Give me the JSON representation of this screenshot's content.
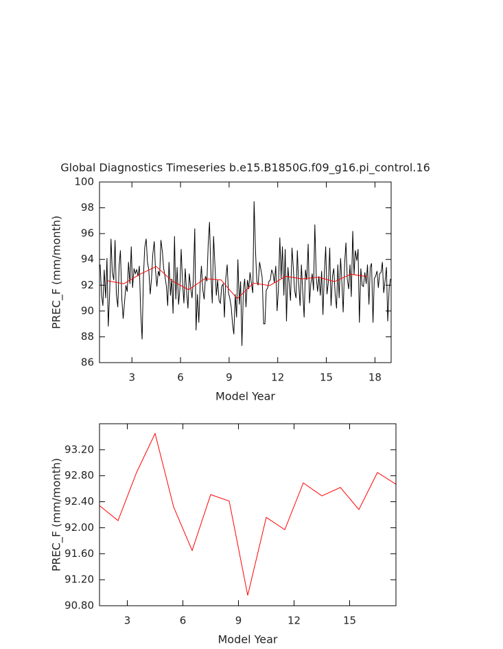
{
  "chart_data": [
    {
      "type": "line",
      "title": "Global Diagnostics Timeseries b.e15.B1850G.f09_g16.pi_control.16",
      "xlabel": "Model Year",
      "ylabel": "PREC_F (mm/month)",
      "xlim": [
        1,
        19
      ],
      "xticks": [
        3,
        6,
        9,
        12,
        15,
        18
      ],
      "ylim": [
        86,
        100
      ],
      "yticks": [
        86,
        88,
        90,
        92,
        94,
        96,
        98,
        100
      ],
      "series": [
        {
          "color": "#000000",
          "x": [
            1.04,
            1.13,
            1.21,
            1.29,
            1.38,
            1.46,
            1.54,
            1.63,
            1.71,
            1.79,
            1.88,
            1.96,
            2.04,
            2.13,
            2.21,
            2.29,
            2.38,
            2.46,
            2.54,
            2.63,
            2.71,
            2.79,
            2.88,
            2.96,
            3.04,
            3.13,
            3.21,
            3.29,
            3.38,
            3.46,
            3.54,
            3.63,
            3.71,
            3.79,
            3.88,
            3.96,
            4.04,
            4.13,
            4.21,
            4.29,
            4.38,
            4.46,
            4.54,
            4.63,
            4.71,
            4.79,
            4.88,
            4.96,
            5.04,
            5.13,
            5.21,
            5.29,
            5.38,
            5.46,
            5.54,
            5.63,
            5.71,
            5.79,
            5.88,
            5.96,
            6.04,
            6.13,
            6.21,
            6.29,
            6.38,
            6.46,
            6.54,
            6.63,
            6.71,
            6.79,
            6.88,
            6.96,
            7.04,
            7.13,
            7.21,
            7.29,
            7.38,
            7.46,
            7.54,
            7.63,
            7.71,
            7.79,
            7.88,
            7.96,
            8.04,
            8.13,
            8.21,
            8.29,
            8.38,
            8.46,
            8.54,
            8.63,
            8.71,
            8.79,
            8.88,
            8.96,
            9.04,
            9.13,
            9.21,
            9.29,
            9.38,
            9.46,
            9.54,
            9.63,
            9.71,
            9.79,
            9.88,
            9.96,
            10.04,
            10.13,
            10.21,
            10.29,
            10.38,
            10.46,
            10.54,
            10.63,
            10.71,
            10.79,
            10.88,
            10.96,
            11.04,
            11.13,
            11.21,
            11.29,
            11.38,
            11.46,
            11.54,
            11.63,
            11.71,
            11.79,
            11.88,
            11.96,
            12.04,
            12.13,
            12.21,
            12.29,
            12.38,
            12.46,
            12.54,
            12.63,
            12.71,
            12.79,
            12.88,
            12.96,
            13.04,
            13.13,
            13.21,
            13.29,
            13.38,
            13.46,
            13.54,
            13.63,
            13.71,
            13.79,
            13.88,
            13.96,
            14.04,
            14.13,
            14.21,
            14.29,
            14.38,
            14.46,
            14.54,
            14.63,
            14.71,
            14.79,
            14.88,
            14.96,
            15.04,
            15.13,
            15.21,
            15.29,
            15.38,
            15.46,
            15.54,
            15.63,
            15.71,
            15.79,
            15.88,
            15.96,
            16.04,
            16.13,
            16.21,
            16.29,
            16.38,
            16.46,
            16.54,
            16.63,
            16.71,
            16.79,
            16.88,
            16.96,
            17.04,
            17.13,
            17.21,
            17.29,
            17.38,
            17.46,
            17.54,
            17.63,
            17.71,
            17.79,
            17.88,
            17.96,
            18.04,
            18.13,
            18.21,
            18.29,
            18.38,
            18.46,
            18.54,
            18.63,
            18.71,
            18.79,
            18.88,
            18.96
          ],
          "values": [
            93.6,
            91.2,
            90.4,
            93.2,
            91.0,
            94.1,
            88.8,
            91.5,
            95.6,
            93.0,
            92.4,
            95.5,
            91.3,
            90.3,
            93.5,
            94.7,
            90.9,
            89.4,
            90.6,
            92.0,
            91.5,
            93.8,
            92.1,
            95.0,
            91.8,
            93.3,
            92.9,
            93.2,
            92.7,
            93.5,
            90.0,
            87.8,
            92.6,
            94.9,
            95.6,
            93.8,
            93.2,
            91.3,
            92.5,
            94.4,
            95.4,
            93.1,
            91.9,
            93.1,
            92.7,
            95.5,
            94.6,
            93.3,
            92.7,
            91.9,
            90.4,
            93.8,
            91.2,
            92.5,
            89.8,
            95.8,
            90.9,
            93.4,
            90.5,
            91.7,
            94.8,
            92.1,
            90.6,
            93.3,
            91.4,
            90.2,
            92.9,
            91.8,
            91.0,
            92.4,
            96.4,
            88.5,
            91.3,
            89.1,
            92.0,
            93.5,
            91.6,
            90.9,
            92.7,
            92.3,
            95.2,
            96.9,
            92.8,
            90.6,
            95.8,
            93.4,
            91.2,
            92.4,
            90.8,
            90.6,
            91.9,
            92.1,
            89.5,
            92.5,
            93.6,
            91.4,
            91.0,
            90.3,
            89.0,
            88.2,
            91.3,
            89.5,
            94.0,
            90.5,
            92.3,
            87.3,
            91.6,
            92.5,
            90.3,
            92.4,
            91.7,
            93.0,
            92.1,
            91.4,
            98.5,
            94.6,
            92.3,
            92.0,
            93.8,
            93.2,
            92.6,
            89.0,
            89.0,
            91.6,
            91.8,
            92.3,
            92.4,
            93.2,
            92.9,
            92.2,
            93.5,
            90.0,
            91.6,
            95.7,
            92.5,
            95.0,
            91.2,
            94.8,
            89.2,
            93.4,
            92.1,
            90.8,
            94.9,
            93.4,
            91.6,
            91.0,
            94.7,
            92.2,
            90.4,
            93.6,
            91.6,
            89.5,
            93.2,
            92.4,
            95.2,
            90.6,
            92.1,
            92.9,
            91.6,
            96.7,
            92.6,
            91.5,
            92.7,
            91.2,
            93.1,
            89.7,
            93.0,
            95.0,
            91.3,
            92.3,
            94.9,
            90.4,
            92.7,
            93.3,
            91.4,
            90.2,
            93.6,
            91.0,
            94.1,
            92.2,
            89.9,
            93.7,
            95.3,
            92.5,
            91.7,
            93.6,
            91.1,
            96.2,
            92.8,
            94.7,
            93.9,
            94.8,
            89.1,
            93.3,
            92.0,
            91.9,
            93.0,
            92.1,
            93.6,
            90.5,
            93.4,
            93.7,
            89.1,
            92.5,
            92.7,
            93.1,
            91.8,
            92.9,
            93.0,
            93.8,
            91.4,
            92.4,
            93.4,
            89.2,
            91.8,
            92.5
          ]
        },
        {
          "color": "#ff0000",
          "x": [
            1.5,
            2.5,
            3.5,
            4.5,
            5.5,
            6.5,
            7.5,
            8.5,
            9.5,
            10.5,
            11.5,
            12.5,
            13.5,
            14.5,
            15.5,
            16.5,
            17.5
          ],
          "values": [
            92.34,
            92.11,
            92.85,
            93.45,
            92.32,
            91.65,
            92.51,
            92.41,
            90.96,
            92.16,
            91.97,
            92.69,
            92.49,
            92.62,
            92.28,
            92.85,
            92.67
          ]
        }
      ]
    },
    {
      "type": "line",
      "xlabel": "Model Year",
      "ylabel": "PREC_F (mm/month)",
      "xlim": [
        1.5,
        17.5
      ],
      "xticks": [
        3,
        6,
        9,
        12,
        15
      ],
      "ylim": [
        90.8,
        93.6
      ],
      "yticks": [
        {
          "value": 90.8,
          "label": "90.80"
        },
        {
          "value": 91.2,
          "label": "91.20"
        },
        {
          "value": 91.6,
          "label": "91.60"
        },
        {
          "value": 92.0,
          "label": "92.00"
        },
        {
          "value": 92.4,
          "label": "92.40"
        },
        {
          "value": 92.8,
          "label": "92.80"
        },
        {
          "value": 93.2,
          "label": "93.20"
        }
      ],
      "series": [
        {
          "color": "#ff0000",
          "x": [
            1.5,
            2.5,
            3.5,
            4.5,
            5.5,
            6.5,
            7.5,
            8.5,
            9.5,
            10.5,
            11.5,
            12.5,
            13.5,
            14.5,
            15.5,
            16.5,
            17.5
          ],
          "values": [
            92.34,
            92.11,
            92.85,
            93.45,
            92.32,
            91.65,
            92.51,
            92.41,
            90.96,
            92.16,
            91.97,
            92.69,
            92.49,
            92.62,
            92.28,
            92.85,
            92.67
          ]
        }
      ]
    }
  ]
}
